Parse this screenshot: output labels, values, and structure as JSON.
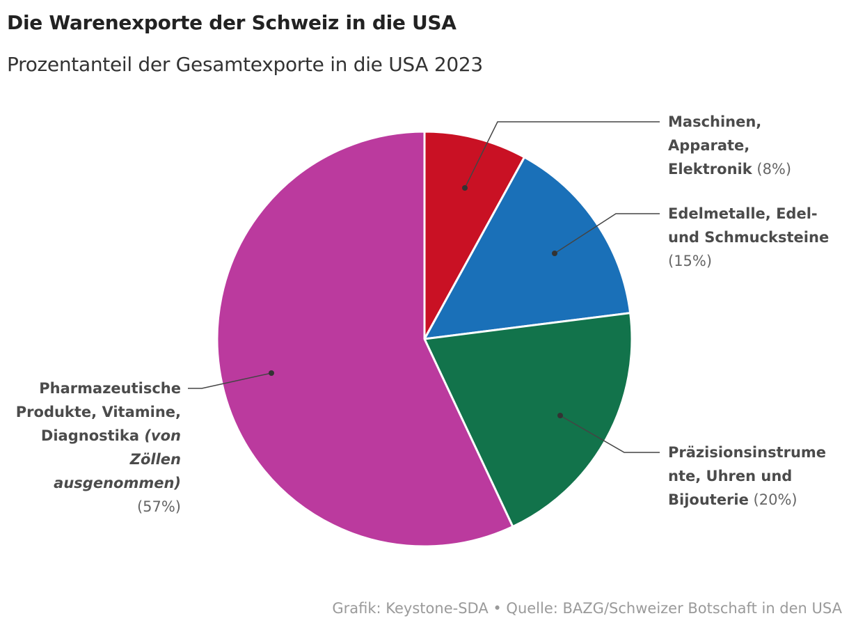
{
  "chart_data": {
    "type": "pie",
    "title": "Die Warenexporte der Schweiz in die USA",
    "subtitle": "Prozentanteil der Gesamtexporte in die USA 2023",
    "source": "Grafik: Keystone-SDA • Quelle: BAZG/Schweizer Botschaft in den USA",
    "start_angle": "top, clockwise",
    "slices": [
      {
        "id": "maschinen",
        "value": 8,
        "color": "#c91124",
        "label_lines": [
          [
            {
              "t": "Maschinen,",
              "s": "b"
            }
          ],
          [
            {
              "t": "Apparate,",
              "s": "b"
            }
          ],
          [
            {
              "t": "Elektronik",
              "s": "b"
            },
            {
              "t": " (8%)",
              "s": "p"
            }
          ]
        ]
      },
      {
        "id": "edelmetalle",
        "value": 15,
        "color": "#1a70b8",
        "label_lines": [
          [
            {
              "t": "Edelmetalle, Edel-",
              "s": "b"
            }
          ],
          [
            {
              "t": "und Schmucksteine",
              "s": "b"
            }
          ],
          [
            {
              "t": "(15%)",
              "s": "p"
            }
          ]
        ]
      },
      {
        "id": "praezision",
        "value": 20,
        "color": "#12734b",
        "label_lines": [
          [
            {
              "t": "Präzisionsinstrume",
              "s": "b"
            }
          ],
          [
            {
              "t": "nte, Uhren und",
              "s": "b"
            }
          ],
          [
            {
              "t": "Bijouterie",
              "s": "b"
            },
            {
              "t": " (20%)",
              "s": "p"
            }
          ]
        ]
      },
      {
        "id": "pharma",
        "value": 57,
        "color": "#bb3a9e",
        "label_lines": [
          [
            {
              "t": "Pharmazeutische",
              "s": "b"
            }
          ],
          [
            {
              "t": "Produkte, Vitamine,",
              "s": "b"
            }
          ],
          [
            {
              "t": "Diagnostika ",
              "s": "b"
            },
            {
              "t": "(von",
              "s": "i"
            }
          ],
          [
            {
              "t": "Zöllen",
              "s": "i"
            }
          ],
          [
            {
              "t": "ausgenommen)",
              "s": "i"
            }
          ],
          [
            {
              "t": "(57%)",
              "s": "p"
            }
          ]
        ]
      }
    ]
  }
}
